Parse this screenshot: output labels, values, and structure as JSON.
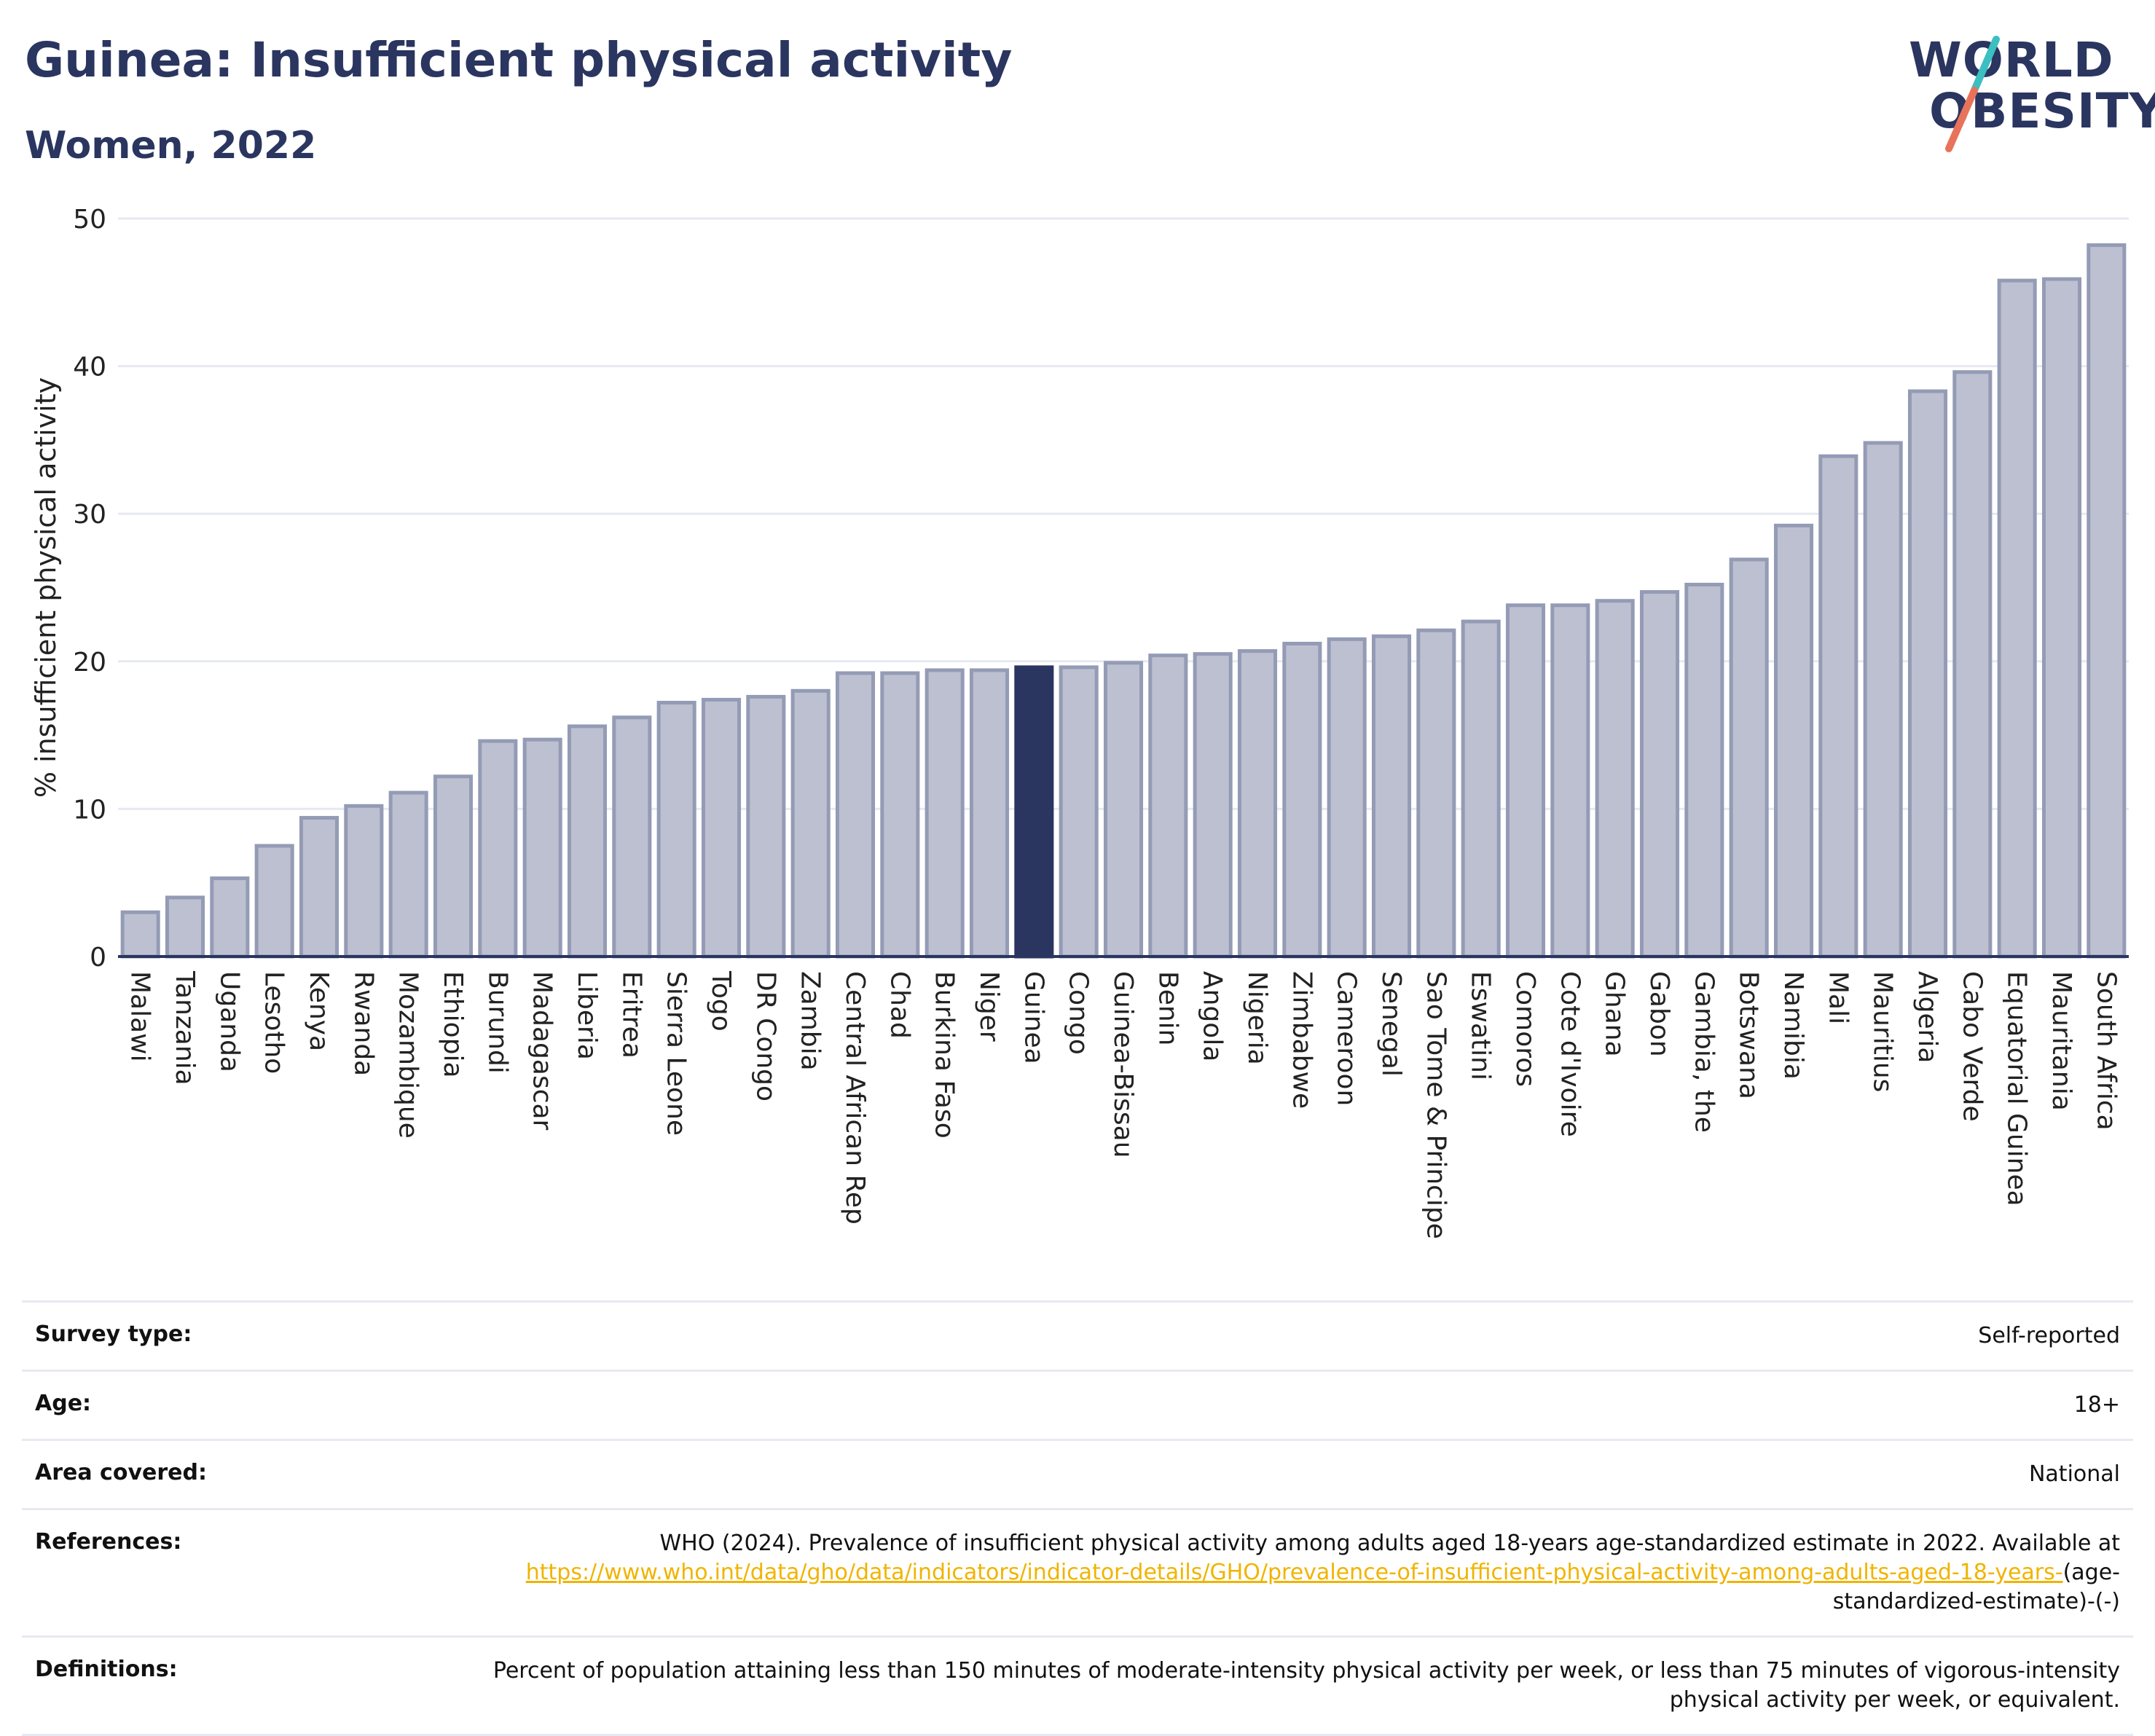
{
  "header": {
    "title": "Guinea: Insufficient physical activity",
    "subtitle": "Women, 2022"
  },
  "logo": {
    "line1": "WORLD",
    "line2": "OBESITY"
  },
  "colors": {
    "bar": "#bcc0d0",
    "bar_stroke": "#949bb5",
    "highlight": "#2a3560",
    "grid": "#e7e9f2",
    "text": "#2a3560",
    "logo_slash_teal": "#3bbfc0",
    "logo_slash_coral": "#e8735a"
  },
  "chart_data": {
    "type": "bar",
    "ylabel": "% insufficient physical activity",
    "ylim": [
      0,
      50
    ],
    "yticks": [
      0,
      10,
      20,
      30,
      40,
      50
    ],
    "grid": true,
    "highlight": "Guinea",
    "categories": [
      "Malawi",
      "Tanzania",
      "Uganda",
      "Lesotho",
      "Kenya",
      "Rwanda",
      "Mozambique",
      "Ethiopia",
      "Burundi",
      "Madagascar",
      "Liberia",
      "Eritrea",
      "Sierra Leone",
      "Togo",
      "DR Congo",
      "Zambia",
      "Central African Rep",
      "Chad",
      "Burkina Faso",
      "Niger",
      "Guinea",
      "Congo",
      "Guinea-Bissau",
      "Benin",
      "Angola",
      "Nigeria",
      "Zimbabwe",
      "Cameroon",
      "Senegal",
      "Sao Tome & Principe",
      "Eswatini",
      "Comoros",
      "Cote d'Ivoire",
      "Ghana",
      "Gabon",
      "Gambia, the",
      "Botswana",
      "Namibia",
      "Mali",
      "Mauritius",
      "Algeria",
      "Cabo Verde",
      "Equatorial Guinea",
      "Mauritania",
      "South Africa"
    ],
    "values": [
      3.0,
      4.0,
      5.3,
      7.5,
      9.4,
      10.2,
      11.1,
      12.2,
      14.6,
      14.7,
      15.6,
      16.2,
      17.2,
      17.4,
      17.6,
      18.0,
      19.2,
      19.2,
      19.4,
      19.4,
      19.6,
      19.6,
      19.9,
      20.4,
      20.5,
      20.7,
      21.2,
      21.5,
      21.7,
      22.1,
      22.7,
      23.8,
      23.8,
      24.1,
      24.7,
      25.2,
      26.9,
      29.2,
      33.9,
      34.8,
      38.3,
      39.6,
      45.8,
      45.9,
      48.2
    ]
  },
  "info": {
    "survey_label": "Survey type:",
    "survey_value": "Self-reported",
    "age_label": "Age:",
    "age_value": "18+",
    "area_label": "Area covered:",
    "area_value": "National",
    "references_label": "References:",
    "references_text": "WHO (2024). Prevalence of insufficient physical activity among adults aged 18-years age-standardized estimate in 2022. Available at",
    "references_link": "https://www.who.int/data/gho/data/indicators/indicator-details/GHO/prevalence-of-insufficient-physical-activity-among-adults-aged-18-years-",
    "references_tail": "(age-standardized-estimate)-(-)",
    "definitions_label": "Definitions:",
    "definitions_value": "Percent of population attaining less than 150 minutes of moderate-intensity physical activity per week, or less than 75 minutes of vigorous-intensity physical activity per week, or equivalent."
  }
}
